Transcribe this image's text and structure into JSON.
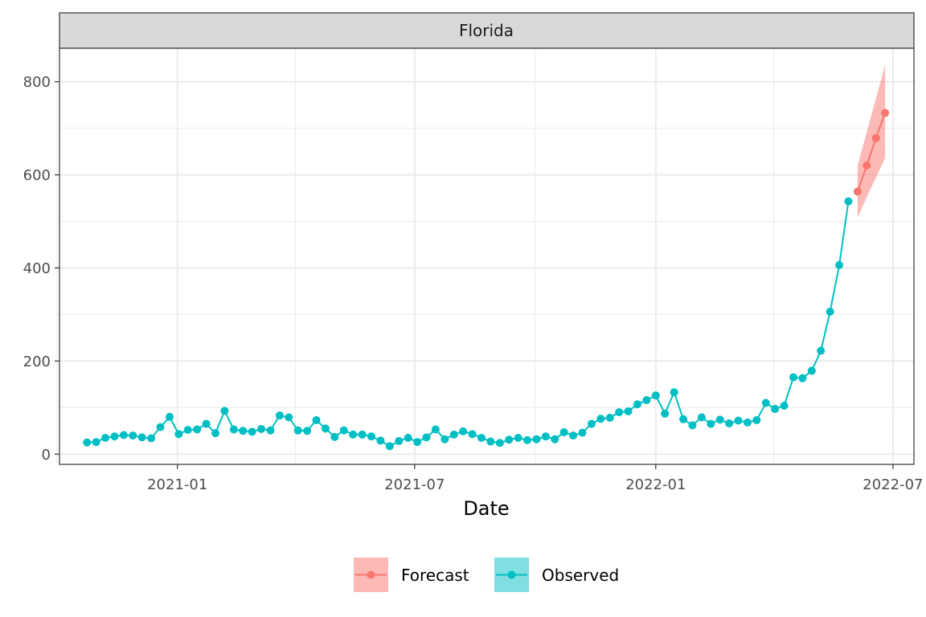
{
  "chart_data": {
    "type": "line",
    "facet_title": "Florida",
    "xlabel": "Date",
    "ylabel": "",
    "xlim": [
      "2020-10-03",
      "2022-07-17"
    ],
    "ylim": [
      -22,
      872
    ],
    "x_ticks": [
      "2021-01-01",
      "2021-07-01",
      "2022-01-01",
      "2022-07-01"
    ],
    "x_tick_labels": [
      "2021-01",
      "2021-07",
      "2022-01",
      "2022-07"
    ],
    "x_minor_ticks": [
      "2020-10-01",
      "2021-04-01",
      "2021-10-01",
      "2022-04-01"
    ],
    "y_ticks": [
      0,
      200,
      400,
      600,
      800
    ],
    "y_tick_labels": [
      "0",
      "200",
      "400",
      "600",
      "800"
    ],
    "y_minor_ticks": [
      100,
      300,
      500,
      700
    ],
    "grid": true,
    "legend_position": "bottom",
    "series": [
      {
        "name": "Observed",
        "color": "#00BFC4",
        "points": [
          [
            "2020-10-24",
            25
          ],
          [
            "2020-10-31",
            26
          ],
          [
            "2020-11-07",
            35
          ],
          [
            "2020-11-14",
            38
          ],
          [
            "2020-11-21",
            41
          ],
          [
            "2020-11-28",
            40
          ],
          [
            "2020-12-05",
            36
          ],
          [
            "2020-12-12",
            34
          ],
          [
            "2020-12-19",
            58
          ],
          [
            "2020-12-26",
            80
          ],
          [
            "2021-01-02",
            43
          ],
          [
            "2021-01-09",
            52
          ],
          [
            "2021-01-16",
            53
          ],
          [
            "2021-01-23",
            65
          ],
          [
            "2021-01-30",
            45
          ],
          [
            "2021-02-06",
            93
          ],
          [
            "2021-02-13",
            53
          ],
          [
            "2021-02-20",
            50
          ],
          [
            "2021-02-27",
            48
          ],
          [
            "2021-03-06",
            54
          ],
          [
            "2021-03-13",
            51
          ],
          [
            "2021-03-20",
            83
          ],
          [
            "2021-03-27",
            79
          ],
          [
            "2021-04-03",
            51
          ],
          [
            "2021-04-10",
            50
          ],
          [
            "2021-04-17",
            73
          ],
          [
            "2021-04-24",
            55
          ],
          [
            "2021-05-01",
            37
          ],
          [
            "2021-05-08",
            51
          ],
          [
            "2021-05-15",
            42
          ],
          [
            "2021-05-22",
            42
          ],
          [
            "2021-05-29",
            38
          ],
          [
            "2021-06-05",
            29
          ],
          [
            "2021-06-12",
            17
          ],
          [
            "2021-06-19",
            28
          ],
          [
            "2021-06-26",
            35
          ],
          [
            "2021-07-03",
            26
          ],
          [
            "2021-07-10",
            36
          ],
          [
            "2021-07-17",
            53
          ],
          [
            "2021-07-24",
            32
          ],
          [
            "2021-07-31",
            42
          ],
          [
            "2021-08-07",
            49
          ],
          [
            "2021-08-14",
            43
          ],
          [
            "2021-08-21",
            35
          ],
          [
            "2021-08-28",
            27
          ],
          [
            "2021-09-04",
            24
          ],
          [
            "2021-09-11",
            31
          ],
          [
            "2021-09-18",
            35
          ],
          [
            "2021-09-25",
            30
          ],
          [
            "2021-10-02",
            32
          ],
          [
            "2021-10-09",
            38
          ],
          [
            "2021-10-16",
            32
          ],
          [
            "2021-10-23",
            47
          ],
          [
            "2021-10-30",
            40
          ],
          [
            "2021-11-06",
            46
          ],
          [
            "2021-11-13",
            65
          ],
          [
            "2021-11-20",
            76
          ],
          [
            "2021-11-27",
            78
          ],
          [
            "2021-12-04",
            90
          ],
          [
            "2021-12-11",
            92
          ],
          [
            "2021-12-18",
            107
          ],
          [
            "2021-12-25",
            116
          ],
          [
            "2022-01-01",
            126
          ],
          [
            "2022-01-08",
            87
          ],
          [
            "2022-01-15",
            133
          ],
          [
            "2022-01-22",
            75
          ],
          [
            "2022-01-29",
            62
          ],
          [
            "2022-02-05",
            79
          ],
          [
            "2022-02-12",
            65
          ],
          [
            "2022-02-19",
            74
          ],
          [
            "2022-02-26",
            66
          ],
          [
            "2022-03-05",
            72
          ],
          [
            "2022-03-12",
            68
          ],
          [
            "2022-03-19",
            73
          ],
          [
            "2022-03-26",
            110
          ],
          [
            "2022-04-02",
            97
          ],
          [
            "2022-04-09",
            104
          ],
          [
            "2022-04-16",
            165
          ],
          [
            "2022-04-23",
            163
          ],
          [
            "2022-04-30",
            179
          ],
          [
            "2022-05-07",
            222
          ],
          [
            "2022-05-14",
            306
          ],
          [
            "2022-05-21",
            406
          ],
          [
            "2022-05-28",
            543
          ]
        ]
      },
      {
        "name": "Forecast",
        "color": "#F8766D",
        "points": [
          [
            "2022-06-04",
            564
          ],
          [
            "2022-06-11",
            620
          ],
          [
            "2022-06-18",
            679
          ],
          [
            "2022-06-25",
            733
          ]
        ],
        "lower": [
          508,
          552,
          594,
          636
        ],
        "upper": [
          620,
          692,
          764,
          836
        ]
      }
    ],
    "legend": [
      "Forecast",
      "Observed"
    ]
  }
}
